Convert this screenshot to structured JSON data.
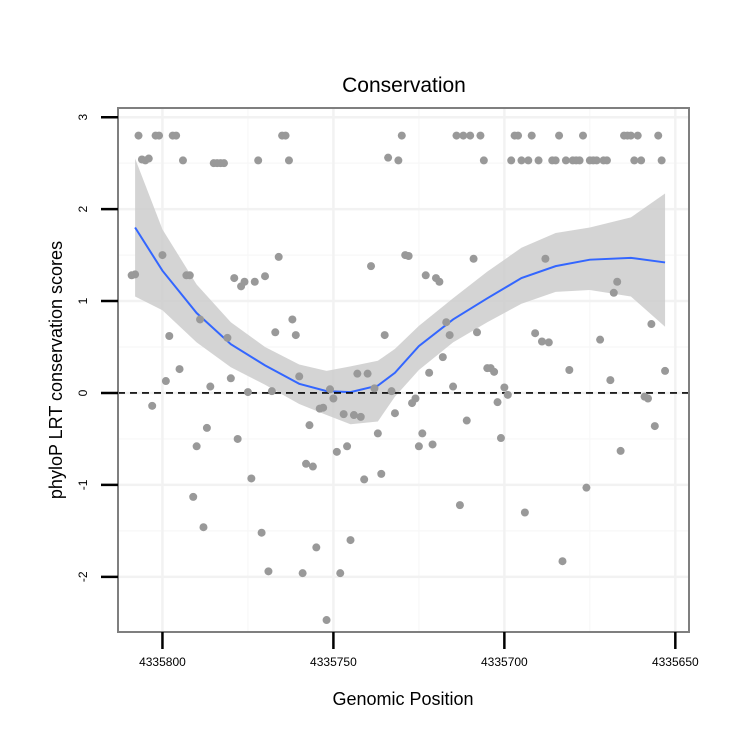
{
  "chart_data": {
    "type": "scatter",
    "title": "Conservation",
    "xlabel": "Genomic Position",
    "ylabel": "phyloP LRT conservation scores",
    "x_reversed": true,
    "xlim": [
      4335813,
      4335646
    ],
    "ylim": [
      -2.6,
      3.1
    ],
    "x_ticks": [
      4335800,
      4335750,
      4335700,
      4335650
    ],
    "y_ticks": [
      -2,
      -1,
      0,
      1,
      2,
      3
    ],
    "x_tick_labels": [
      "4335800",
      "4335750",
      "4335700",
      "4335650"
    ],
    "y_tick_labels": [
      "-2",
      "-1",
      "0",
      "1",
      "2",
      "3"
    ],
    "grid": true,
    "colors": {
      "points": "#999999",
      "smooth_line": "#3366ff",
      "confidence_band": "#cccccc",
      "panel_border": "#7f7f7f"
    },
    "reference_line": {
      "y": 0,
      "style": "dashed",
      "color": "#000000"
    },
    "series": [
      {
        "type": "scatter",
        "points": [
          [
            4335809,
            1.28
          ],
          [
            4335808,
            1.29
          ],
          [
            4335807,
            2.8
          ],
          [
            4335806,
            2.54
          ],
          [
            4335805,
            2.53
          ],
          [
            4335804,
            2.55
          ],
          [
            4335803,
            -0.14
          ],
          [
            4335802,
            2.8
          ],
          [
            4335801,
            2.8
          ],
          [
            4335800,
            1.5
          ],
          [
            4335799,
            0.13
          ],
          [
            4335798,
            0.62
          ],
          [
            4335797,
            2.8
          ],
          [
            4335796,
            2.8
          ],
          [
            4335795,
            0.26
          ],
          [
            4335794,
            2.53
          ],
          [
            4335793,
            1.28
          ],
          [
            4335792,
            1.28
          ],
          [
            4335791,
            -1.13
          ],
          [
            4335790,
            -0.58
          ],
          [
            4335789,
            0.8
          ],
          [
            4335788,
            -1.46
          ],
          [
            4335787,
            -0.38
          ],
          [
            4335786,
            0.07
          ],
          [
            4335785,
            2.5
          ],
          [
            4335784,
            2.5
          ],
          [
            4335783,
            2.5
          ],
          [
            4335782,
            2.5
          ],
          [
            4335781,
            0.6
          ],
          [
            4335780,
            0.16
          ],
          [
            4335779,
            1.25
          ],
          [
            4335778,
            -0.5
          ],
          [
            4335777,
            1.16
          ],
          [
            4335776,
            1.21
          ],
          [
            4335775,
            0.01
          ],
          [
            4335774,
            -0.93
          ],
          [
            4335773,
            1.21
          ],
          [
            4335772,
            2.53
          ],
          [
            4335771,
            -1.52
          ],
          [
            4335770,
            1.27
          ],
          [
            4335769,
            -1.94
          ],
          [
            4335768,
            0.02
          ],
          [
            4335767,
            0.66
          ],
          [
            4335766,
            1.48
          ],
          [
            4335765,
            2.8
          ],
          [
            4335764,
            2.8
          ],
          [
            4335763,
            2.53
          ],
          [
            4335762,
            0.8
          ],
          [
            4335761,
            0.63
          ],
          [
            4335760,
            0.18
          ],
          [
            4335759,
            -1.96
          ],
          [
            4335758,
            -0.77
          ],
          [
            4335757,
            -0.35
          ],
          [
            4335756,
            -0.8
          ],
          [
            4335755,
            -1.68
          ],
          [
            4335754,
            -0.17
          ],
          [
            4335753,
            -0.16
          ],
          [
            4335752,
            -2.47
          ],
          [
            4335751,
            0.04
          ],
          [
            4335750,
            -0.06
          ],
          [
            4335749,
            -0.64
          ],
          [
            4335748,
            -1.96
          ],
          [
            4335747,
            -0.23
          ],
          [
            4335746,
            -0.58
          ],
          [
            4335745,
            -1.6
          ],
          [
            4335744,
            -0.24
          ],
          [
            4335743,
            0.21
          ],
          [
            4335742,
            -0.26
          ],
          [
            4335741,
            -0.94
          ],
          [
            4335740,
            0.21
          ],
          [
            4335739,
            1.38
          ],
          [
            4335738,
            0.05
          ],
          [
            4335737,
            -0.44
          ],
          [
            4335736,
            -0.88
          ],
          [
            4335735,
            0.63
          ],
          [
            4335734,
            2.56
          ],
          [
            4335733,
            0.02
          ],
          [
            4335732,
            -0.22
          ],
          [
            4335731,
            2.53
          ],
          [
            4335730,
            2.8
          ],
          [
            4335729,
            1.5
          ],
          [
            4335728,
            1.49
          ],
          [
            4335727,
            -0.11
          ],
          [
            4335726,
            -0.06
          ],
          [
            4335725,
            -0.58
          ],
          [
            4335724,
            -0.44
          ],
          [
            4335723,
            1.28
          ],
          [
            4335722,
            0.22
          ],
          [
            4335721,
            -0.56
          ],
          [
            4335720,
            1.25
          ],
          [
            4335719,
            1.21
          ],
          [
            4335718,
            0.39
          ],
          [
            4335717,
            0.77
          ],
          [
            4335716,
            0.63
          ],
          [
            4335715,
            0.07
          ],
          [
            4335714,
            2.8
          ],
          [
            4335713,
            -1.22
          ],
          [
            4335712,
            2.8
          ],
          [
            4335711,
            -0.3
          ],
          [
            4335710,
            2.8
          ],
          [
            4335709,
            1.46
          ],
          [
            4335708,
            0.66
          ],
          [
            4335707,
            2.8
          ],
          [
            4335706,
            2.53
          ],
          [
            4335705,
            0.27
          ],
          [
            4335704,
            0.27
          ],
          [
            4335703,
            0.23
          ],
          [
            4335702,
            -0.1
          ],
          [
            4335701,
            -0.49
          ],
          [
            4335700,
            0.06
          ],
          [
            4335699,
            -0.02
          ],
          [
            4335698,
            2.53
          ],
          [
            4335697,
            2.8
          ],
          [
            4335696,
            2.8
          ],
          [
            4335695,
            2.53
          ],
          [
            4335694,
            -1.3
          ],
          [
            4335693,
            2.53
          ],
          [
            4335692,
            2.8
          ],
          [
            4335691,
            0.65
          ],
          [
            4335690,
            2.53
          ],
          [
            4335689,
            0.56
          ],
          [
            4335688,
            1.46
          ],
          [
            4335687,
            0.55
          ],
          [
            4335686,
            2.53
          ],
          [
            4335685,
            2.53
          ],
          [
            4335684,
            2.8
          ],
          [
            4335683,
            -1.83
          ],
          [
            4335682,
            2.53
          ],
          [
            4335681,
            0.25
          ],
          [
            4335680,
            2.53
          ],
          [
            4335679,
            2.53
          ],
          [
            4335678,
            2.53
          ],
          [
            4335677,
            2.8
          ],
          [
            4335676,
            -1.03
          ],
          [
            4335675,
            2.53
          ],
          [
            4335674,
            2.53
          ],
          [
            4335673,
            2.53
          ],
          [
            4335672,
            0.58
          ],
          [
            4335671,
            2.53
          ],
          [
            4335670,
            2.53
          ],
          [
            4335669,
            0.14
          ],
          [
            4335668,
            1.09
          ],
          [
            4335667,
            1.21
          ],
          [
            4335666,
            -0.63
          ],
          [
            4335665,
            2.8
          ],
          [
            4335664,
            2.8
          ],
          [
            4335663,
            2.8
          ],
          [
            4335662,
            2.53
          ],
          [
            4335661,
            2.8
          ],
          [
            4335660,
            2.53
          ],
          [
            4335659,
            -0.04
          ],
          [
            4335658,
            -0.06
          ],
          [
            4335657,
            0.75
          ],
          [
            4335656,
            -0.36
          ],
          [
            4335655,
            2.8
          ],
          [
            4335654,
            2.53
          ],
          [
            4335653,
            0.24
          ]
        ]
      },
      {
        "type": "smooth",
        "points": [
          [
            4335808,
            1.8
          ],
          [
            4335800,
            1.33
          ],
          [
            4335790,
            0.87
          ],
          [
            4335780,
            0.53
          ],
          [
            4335770,
            0.3
          ],
          [
            4335760,
            0.1
          ],
          [
            4335752,
            0.02
          ],
          [
            4335745,
            0.01
          ],
          [
            4335737,
            0.08
          ],
          [
            4335732,
            0.22
          ],
          [
            4335725,
            0.51
          ],
          [
            4335715,
            0.8
          ],
          [
            4335705,
            1.03
          ],
          [
            4335695,
            1.25
          ],
          [
            4335685,
            1.38
          ],
          [
            4335675,
            1.45
          ],
          [
            4335663,
            1.47
          ],
          [
            4335653,
            1.42
          ]
        ]
      },
      {
        "type": "confidence_band",
        "upper": [
          [
            4335808,
            2.55
          ],
          [
            4335800,
            1.78
          ],
          [
            4335790,
            1.18
          ],
          [
            4335780,
            0.77
          ],
          [
            4335770,
            0.5
          ],
          [
            4335760,
            0.31
          ],
          [
            4335752,
            0.24
          ],
          [
            4335745,
            0.29
          ],
          [
            4335737,
            0.35
          ],
          [
            4335732,
            0.48
          ],
          [
            4335725,
            0.73
          ],
          [
            4335715,
            1.03
          ],
          [
            4335705,
            1.32
          ],
          [
            4335695,
            1.58
          ],
          [
            4335685,
            1.74
          ],
          [
            4335675,
            1.8
          ],
          [
            4335663,
            1.91
          ],
          [
            4335653,
            2.17
          ]
        ],
        "lower": [
          [
            4335808,
            1.05
          ],
          [
            4335800,
            0.9
          ],
          [
            4335790,
            0.55
          ],
          [
            4335780,
            0.28
          ],
          [
            4335770,
            0.09
          ],
          [
            4335760,
            -0.12
          ],
          [
            4335752,
            -0.24
          ],
          [
            4335745,
            -0.34
          ],
          [
            4335737,
            -0.31
          ],
          [
            4335732,
            -0.04
          ],
          [
            4335725,
            0.25
          ],
          [
            4335715,
            0.55
          ],
          [
            4335705,
            0.77
          ],
          [
            4335695,
            0.97
          ],
          [
            4335685,
            1.1
          ],
          [
            4335675,
            1.12
          ],
          [
            4335663,
            1.05
          ],
          [
            4335653,
            0.72
          ]
        ]
      }
    ]
  }
}
